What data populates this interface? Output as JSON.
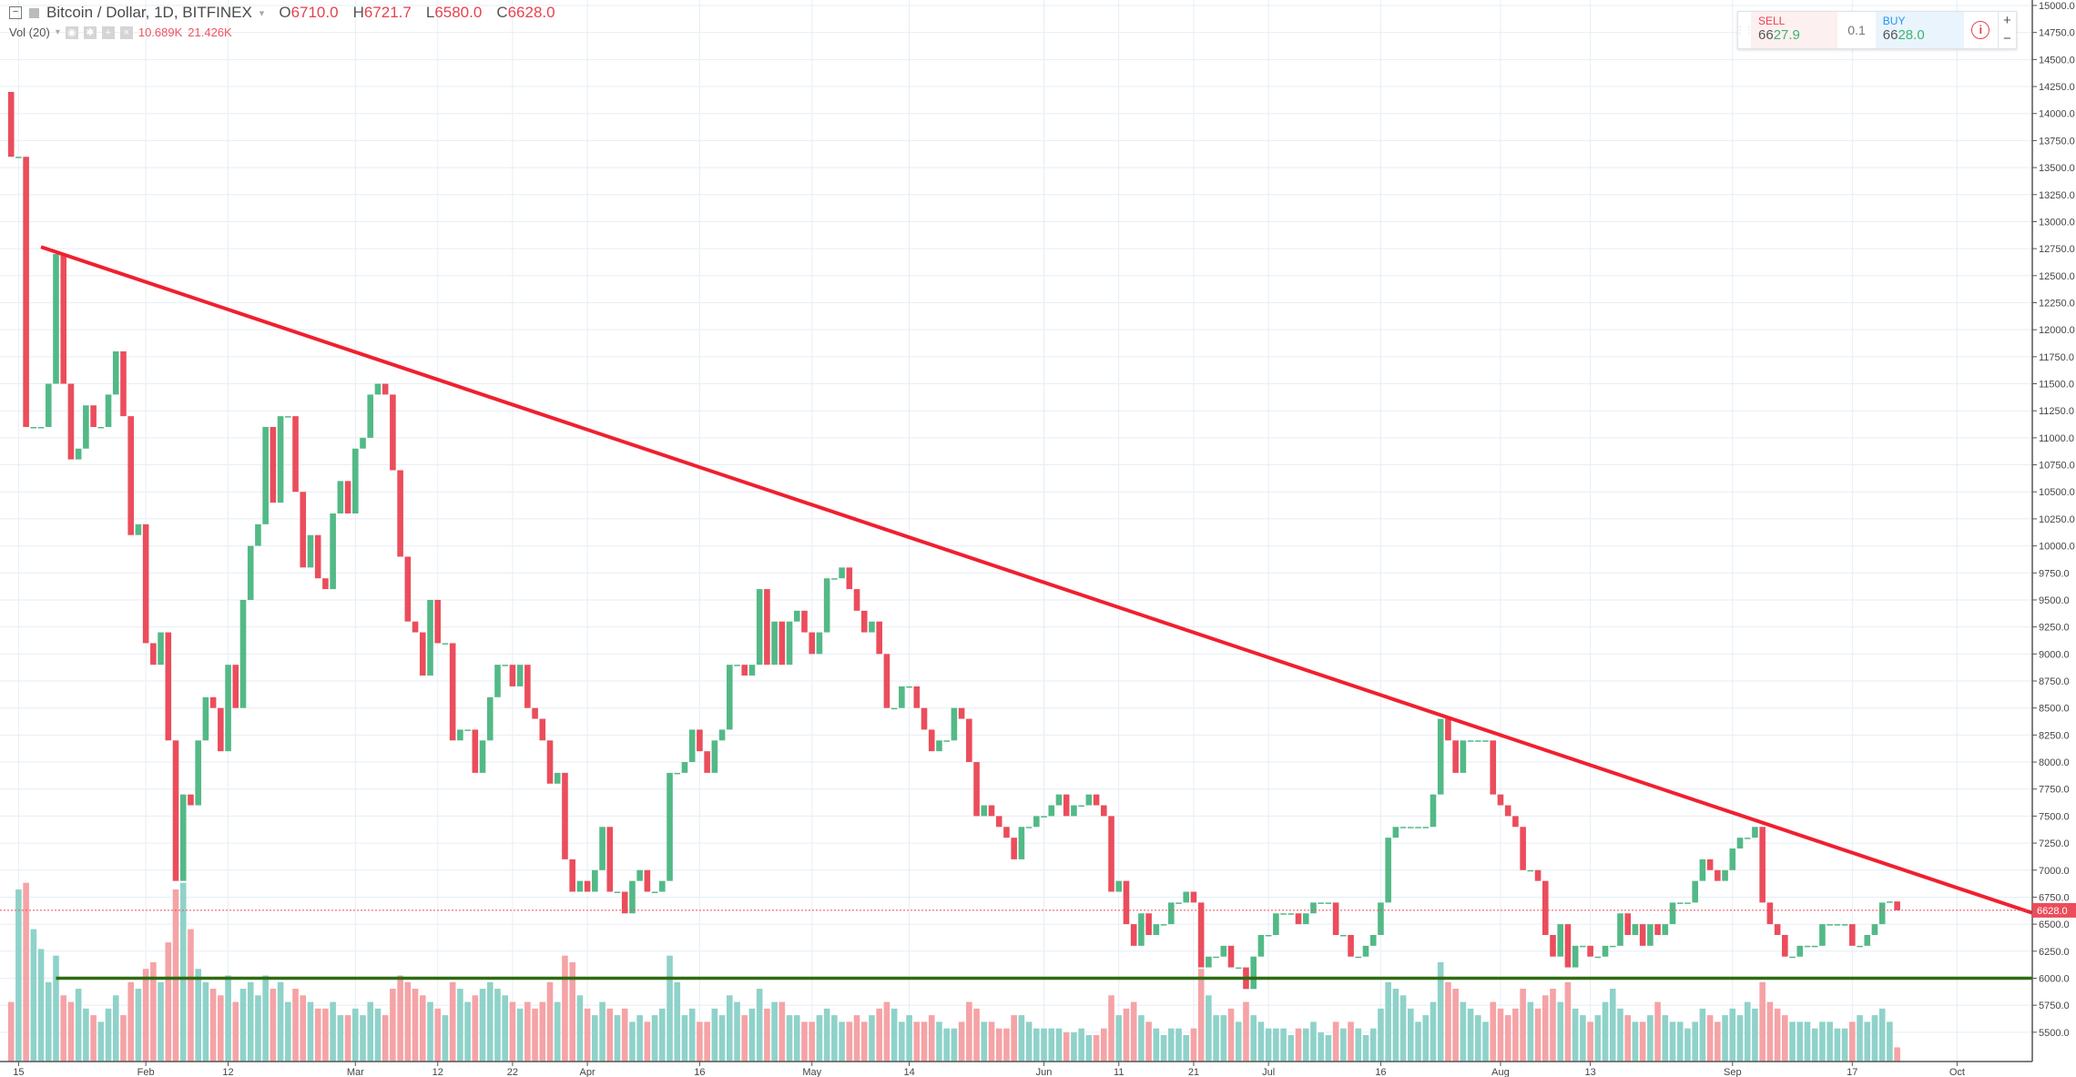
{
  "header": {
    "symbol": "Bitcoin / Dollar, 1D, BITFINEX",
    "o_label": "O",
    "o": "6710.0",
    "h_label": "H",
    "h": "6721.7",
    "l_label": "L",
    "l": "6580.0",
    "c_label": "C",
    "c": "6628.0"
  },
  "volume_legend": {
    "label": "Vol (20)",
    "value": "10.689K",
    "ma": "21.426K"
  },
  "trade_panel": {
    "sell_label": "SELL",
    "sell_price_prefix": "66",
    "sell_price_suffix": "27.9",
    "quantity": "0.1",
    "buy_label": "BUY",
    "buy_price_prefix": "66",
    "buy_price_suffix": "28.0",
    "plus": "+",
    "minus": "−"
  },
  "colors": {
    "up": "#53b987",
    "down": "#eb4d5c",
    "vol_up": "#8fd2c9",
    "vol_down": "#f5a3a6",
    "trendline": "#f0202f",
    "support": "#2e6b12",
    "grid": "#e6eef5"
  },
  "chart_data": {
    "type": "candlestick",
    "title": "Bitcoin / Dollar, 1D, BITFINEX",
    "first_date": "Jan 14",
    "first_open": 14200,
    "ylim": [
      5375,
      15000
    ],
    "y_ticks": [
      5500,
      5750,
      6000,
      6250,
      6500,
      6750,
      7000,
      7250,
      7500,
      7750,
      8000,
      8250,
      8500,
      8750,
      9000,
      9250,
      9500,
      9750,
      10000,
      10250,
      10500,
      10750,
      11000,
      11250,
      11500,
      11750,
      12000,
      12250,
      12500,
      12750,
      13000,
      13250,
      13500,
      13750,
      14000,
      14250,
      14500,
      14750,
      15000
    ],
    "x_ticks": [
      {
        "label": "15",
        "date": "Jan 15"
      },
      {
        "label": "Feb",
        "date": "Feb 1"
      },
      {
        "label": "12",
        "date": "Feb 12"
      },
      {
        "label": "Mar",
        "date": "Mar 1"
      },
      {
        "label": "12",
        "date": "Mar 12"
      },
      {
        "label": "22",
        "date": "Mar 22"
      },
      {
        "label": "Apr",
        "date": "Apr 1"
      },
      {
        "label": "16",
        "date": "Apr 16"
      },
      {
        "label": "May",
        "date": "May 1"
      },
      {
        "label": "14",
        "date": "May 14"
      },
      {
        "label": "Jun",
        "date": "Jun 1"
      },
      {
        "label": "11",
        "date": "Jun 11"
      },
      {
        "label": "21",
        "date": "Jun 21"
      },
      {
        "label": "Jul",
        "date": "Jul 1"
      },
      {
        "label": "16",
        "date": "Jul 16"
      },
      {
        "label": "Aug",
        "date": "Aug 1"
      },
      {
        "label": "13",
        "date": "Aug 13"
      },
      {
        "label": "Sep",
        "date": "Sep 1"
      },
      {
        "label": "17",
        "date": "Sep 17"
      },
      {
        "label": "Oct",
        "date": "Oct 1"
      }
    ],
    "last_price": 6628.0,
    "last_price_label": "6628.0",
    "close": [
      13600,
      13600,
      11100,
      11100,
      11100,
      11500,
      12700,
      11500,
      10800,
      10900,
      11300,
      11100,
      11100,
      11400,
      11800,
      11200,
      10100,
      10200,
      9100,
      8900,
      9200,
      8200,
      6900,
      7700,
      7600,
      8200,
      8600,
      8500,
      8100,
      8900,
      8500,
      9500,
      10000,
      10200,
      11100,
      10400,
      11200,
      11200,
      10500,
      9800,
      10100,
      9700,
      9600,
      10300,
      10600,
      10300,
      10900,
      11000,
      11400,
      11500,
      11400,
      10700,
      9900,
      9300,
      9200,
      8800,
      9500,
      9100,
      9100,
      8200,
      8300,
      8300,
      7900,
      8200,
      8600,
      8900,
      8900,
      8700,
      8900,
      8500,
      8400,
      8200,
      7800,
      7900,
      7100,
      6800,
      6900,
      6800,
      7000,
      7400,
      6800,
      6800,
      6600,
      6900,
      7000,
      6800,
      6800,
      6900,
      7900,
      7900,
      8000,
      8300,
      8100,
      7900,
      8200,
      8300,
      8900,
      8900,
      8800,
      8900,
      9600,
      8900,
      9300,
      8900,
      9300,
      9400,
      9200,
      9000,
      9200,
      9700,
      9700,
      9800,
      9600,
      9400,
      9200,
      9300,
      9000,
      8500,
      8500,
      8700,
      8700,
      8500,
      8300,
      8100,
      8200,
      8200,
      8500,
      8400,
      8000,
      7500,
      7600,
      7500,
      7400,
      7300,
      7100,
      7400,
      7400,
      7500,
      7500,
      7600,
      7700,
      7500,
      7600,
      7600,
      7700,
      7600,
      7500,
      6800,
      6900,
      6500,
      6300,
      6600,
      6400,
      6500,
      6500,
      6700,
      6700,
      6800,
      6700,
      6100,
      6200,
      6200,
      6300,
      6100,
      6100,
      5900,
      6200,
      6400,
      6400,
      6600,
      6600,
      6600,
      6500,
      6600,
      6700,
      6700,
      6700,
      6400,
      6400,
      6200,
      6200,
      6300,
      6400,
      6700,
      7300,
      7400,
      7400,
      7400,
      7400,
      7400,
      7700,
      8400,
      8200,
      7900,
      8200,
      8200,
      8200,
      8200,
      7700,
      7600,
      7500,
      7400,
      7000,
      7000,
      6900,
      6400,
      6200,
      6500,
      6100,
      6300,
      6300,
      6200,
      6200,
      6300,
      6300,
      6600,
      6400,
      6500,
      6300,
      6500,
      6400,
      6500,
      6700,
      6700,
      6700,
      6900,
      7100,
      7000,
      6900,
      7000,
      7200,
      7300,
      7300,
      7400,
      6700,
      6500,
      6400,
      6200,
      6200,
      6300,
      6300,
      6300,
      6500,
      6500,
      6500,
      6500,
      6300,
      6300,
      6400,
      6500,
      6700,
      6710,
      6628
    ],
    "volume_k": [
      45,
      130,
      135,
      100,
      85,
      60,
      80,
      50,
      45,
      55,
      40,
      35,
      30,
      40,
      50,
      35,
      60,
      55,
      70,
      75,
      60,
      90,
      130,
      135,
      100,
      70,
      60,
      55,
      50,
      65,
      45,
      55,
      60,
      50,
      65,
      55,
      60,
      45,
      55,
      50,
      45,
      40,
      40,
      45,
      35,
      35,
      40,
      35,
      45,
      40,
      35,
      55,
      65,
      60,
      55,
      50,
      45,
      40,
      35,
      60,
      55,
      45,
      50,
      55,
      60,
      55,
      50,
      45,
      40,
      45,
      40,
      45,
      60,
      45,
      80,
      75,
      50,
      40,
      35,
      45,
      40,
      35,
      40,
      30,
      35,
      30,
      35,
      40,
      80,
      60,
      35,
      40,
      30,
      30,
      40,
      35,
      50,
      45,
      35,
      40,
      55,
      40,
      45,
      45,
      35,
      35,
      30,
      30,
      35,
      40,
      35,
      30,
      30,
      35,
      30,
      35,
      40,
      45,
      40,
      30,
      35,
      30,
      30,
      35,
      30,
      25,
      25,
      30,
      45,
      40,
      30,
      30,
      25,
      25,
      35,
      35,
      30,
      25,
      25,
      25,
      25,
      22,
      22,
      25,
      20,
      20,
      25,
      50,
      35,
      40,
      45,
      35,
      30,
      25,
      20,
      25,
      25,
      20,
      25,
      70,
      50,
      35,
      35,
      40,
      30,
      45,
      35,
      30,
      25,
      25,
      25,
      20,
      25,
      25,
      30,
      22,
      20,
      30,
      25,
      30,
      25,
      20,
      25,
      40,
      60,
      55,
      50,
      40,
      30,
      35,
      45,
      75,
      60,
      55,
      45,
      40,
      35,
      30,
      45,
      40,
      35,
      40,
      55,
      45,
      40,
      50,
      55,
      45,
      60,
      40,
      35,
      30,
      35,
      45,
      55,
      40,
      35,
      30,
      30,
      35,
      45,
      35,
      30,
      30,
      25,
      30,
      40,
      35,
      30,
      35,
      40,
      35,
      45,
      40,
      60,
      45,
      40,
      35,
      30,
      30,
      30,
      25,
      30,
      30,
      25,
      25,
      30,
      35,
      30,
      35,
      40,
      30,
      10.689
    ],
    "annotations": [
      {
        "type": "trendline",
        "from": {
          "date": "Jan 18",
          "price": 12766
        },
        "to": {
          "date": "Oct 11",
          "price": 6605
        }
      },
      {
        "type": "horizontal",
        "price": 6000,
        "from_date": "Jan 20"
      }
    ]
  }
}
